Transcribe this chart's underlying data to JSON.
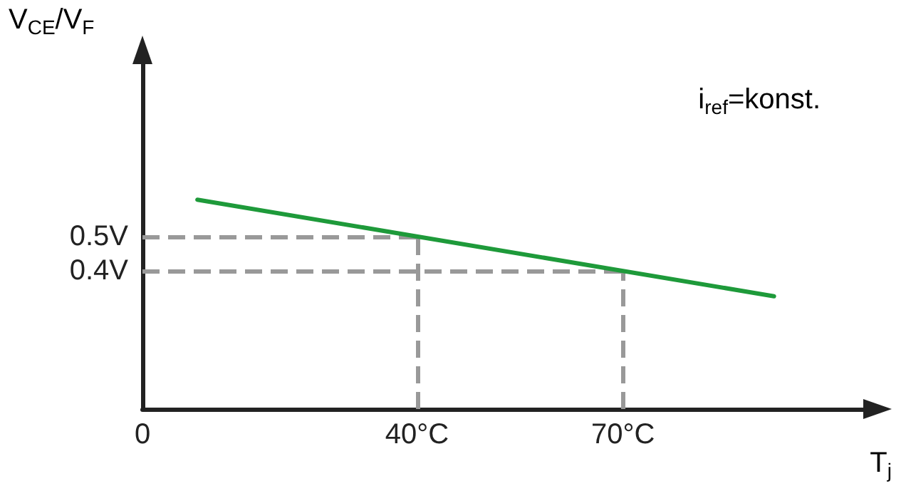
{
  "chart_data": {
    "type": "line",
    "xlabel": "T$_{j}$",
    "ylabel": "V$_{CE}$/V$_{F}$",
    "annotations": [
      "i$_{ref}$=konst."
    ],
    "x": [
      8,
      92
    ],
    "series": [
      {
        "color": "#1e9a3a",
        "values": [
          0.607,
          0.327
        ]
      }
    ],
    "xlim": [
      0,
      105
    ],
    "ylim": [
      0,
      1
    ],
    "xticks": [
      0,
      {
        "value": 40,
        "label": "40°C"
      },
      {
        "value": 70,
        "label": "70°C"
      }
    ],
    "yticks": [
      {
        "value": 0.4,
        "label": "0.4V"
      },
      {
        "value": 0.5,
        "label": "0.5V"
      }
    ],
    "ref_lines": [
      {
        "axis": "y",
        "value": 0.5,
        "color": "#999999",
        "line_style": "dashed"
      },
      {
        "axis": "y",
        "value": 0.4,
        "color": "#999999",
        "line_style": "dashed"
      },
      {
        "axis": "x",
        "value": 40,
        "color": "#999999",
        "line_style": "dashed"
      },
      {
        "axis": "x",
        "value": 70,
        "color": "#999999",
        "line_style": "dashed"
      }
    ],
    "marker": "none",
    "line_style": "solid"
  }
}
